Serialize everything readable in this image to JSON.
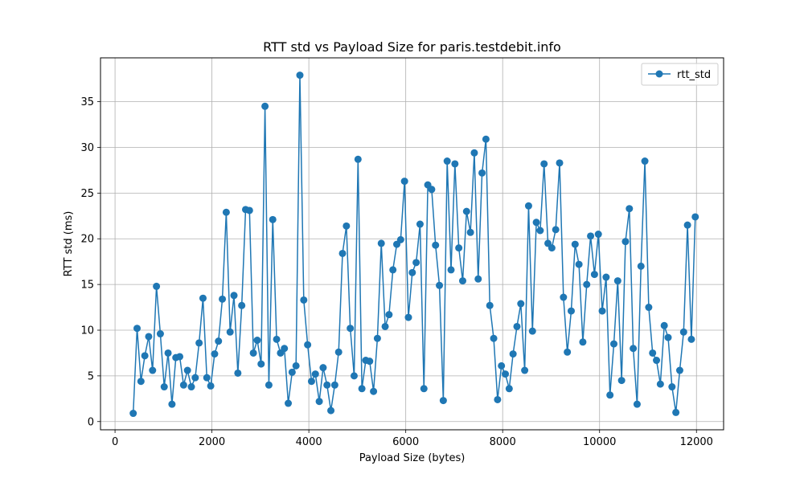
{
  "colors": {
    "series": "#1f77b4",
    "grid": "#b0b0b0",
    "axis": "#000000"
  },
  "chart_data": {
    "type": "line",
    "title": "RTT std vs Payload Size for paris.testdebit.info",
    "xlabel": "Payload Size (bytes)",
    "ylabel": "RTT std (ms)",
    "xlim": [
      -300,
      12560
    ],
    "ylim": [
      -0.9,
      39.8
    ],
    "xticks": [
      0,
      2000,
      4000,
      6000,
      8000,
      10000,
      12000
    ],
    "xtick_labels": [
      "0",
      "2000",
      "4000",
      "6000",
      "8000",
      "10000",
      "12000"
    ],
    "yticks": [
      0,
      5,
      10,
      15,
      20,
      25,
      30,
      35
    ],
    "ytick_labels": [
      "0",
      "5",
      "10",
      "15",
      "20",
      "25",
      "30",
      "35"
    ],
    "grid": true,
    "legend_position": "top-right",
    "series": [
      {
        "name": "rtt_std",
        "marker": "circle",
        "x": [
          375,
          455,
          535,
          615,
          695,
          775,
          855,
          935,
          1015,
          1095,
          1175,
          1255,
          1335,
          1415,
          1495,
          1575,
          1655,
          1735,
          1815,
          1895,
          1975,
          2055,
          2135,
          2215,
          2295,
          2375,
          2455,
          2535,
          2615,
          2695,
          2775,
          2855,
          2935,
          3015,
          3095,
          3175,
          3255,
          3335,
          3415,
          3495,
          3575,
          3655,
          3735,
          3815,
          3895,
          3975,
          4055,
          4135,
          4215,
          4295,
          4375,
          4455,
          4535,
          4615,
          4695,
          4775,
          4855,
          4935,
          5015,
          5095,
          5175,
          5255,
          5335,
          5415,
          5495,
          5575,
          5655,
          5735,
          5815,
          5895,
          5975,
          6055,
          6135,
          6215,
          6295,
          6375,
          6455,
          6535,
          6615,
          6695,
          6775,
          6855,
          6935,
          7015,
          7095,
          7175,
          7255,
          7335,
          7415,
          7495,
          7575,
          7655,
          7735,
          7815,
          7895,
          7975,
          8055,
          8135,
          8215,
          8295,
          8375,
          8455,
          8535,
          8615,
          8695,
          8775,
          8855,
          8935,
          9015,
          9095,
          9175,
          9255,
          9335,
          9415,
          9495,
          9575,
          9655,
          9735,
          9815,
          9895,
          9975,
          10055,
          10135,
          10215,
          10295,
          10375,
          10455,
          10535,
          10615,
          10695,
          10775,
          10855,
          10935,
          11015,
          11095,
          11175,
          11255,
          11335,
          11415,
          11495,
          11575,
          11655,
          11735,
          11815,
          11895,
          11975
        ],
        "y": [
          0.9,
          10.2,
          4.4,
          7.2,
          9.3,
          5.6,
          14.8,
          9.6,
          3.8,
          7.5,
          1.9,
          7.0,
          7.1,
          4.0,
          5.6,
          3.8,
          4.8,
          8.6,
          13.5,
          4.8,
          3.9,
          7.4,
          8.8,
          13.4,
          22.9,
          9.8,
          13.8,
          5.3,
          12.7,
          23.2,
          23.1,
          7.5,
          8.9,
          6.3,
          34.5,
          4.0,
          22.1,
          9.0,
          7.5,
          8.0,
          2.0,
          5.4,
          6.1,
          37.9,
          13.3,
          8.4,
          4.4,
          5.2,
          2.2,
          5.9,
          4.0,
          1.2,
          4.0,
          7.6,
          18.4,
          21.4,
          10.2,
          5.0,
          28.7,
          3.6,
          6.7,
          6.6,
          3.3,
          9.1,
          19.5,
          10.4,
          11.7,
          16.6,
          19.4,
          19.9,
          26.3,
          11.4,
          16.3,
          17.4,
          21.6,
          3.6,
          25.9,
          25.4,
          19.3,
          14.9,
          2.3,
          28.5,
          16.6,
          28.2,
          19.0,
          15.4,
          23.0,
          20.7,
          29.4,
          15.6,
          27.2,
          30.9,
          12.7,
          9.1,
          2.4,
          6.1,
          5.2,
          3.6,
          7.4,
          10.4,
          12.9,
          5.6,
          23.6,
          9.9,
          21.8,
          20.9,
          28.2,
          19.5,
          19.0,
          21.0,
          28.3,
          13.6,
          7.6,
          12.1,
          19.4,
          17.2,
          8.7,
          15.0,
          20.3,
          16.1,
          20.5,
          12.1,
          15.8,
          2.9,
          8.5,
          15.4,
          4.5,
          19.7,
          23.3,
          8.0,
          1.9,
          17.0,
          28.5,
          12.5,
          7.5,
          6.7,
          4.1,
          10.5,
          9.2,
          3.8,
          1.0,
          5.6,
          9.8,
          21.5,
          9.0,
          22.4
        ]
      }
    ]
  }
}
